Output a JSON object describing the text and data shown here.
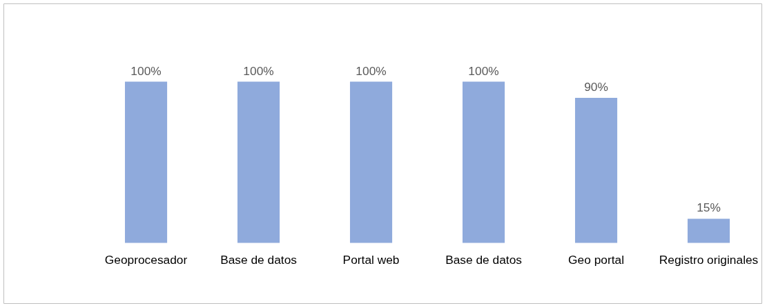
{
  "chart_data": {
    "type": "bar",
    "categories": [
      "Geoprocesador",
      "Base de datos",
      "Portal web",
      "Base de datos",
      "Geo portal",
      "Registro originales"
    ],
    "values": [
      100,
      100,
      100,
      100,
      90,
      15
    ],
    "value_labels": [
      "100%",
      "100%",
      "100%",
      "100%",
      "90%",
      "15%"
    ],
    "color": "#8faadc",
    "tick_labels": "x"
  }
}
